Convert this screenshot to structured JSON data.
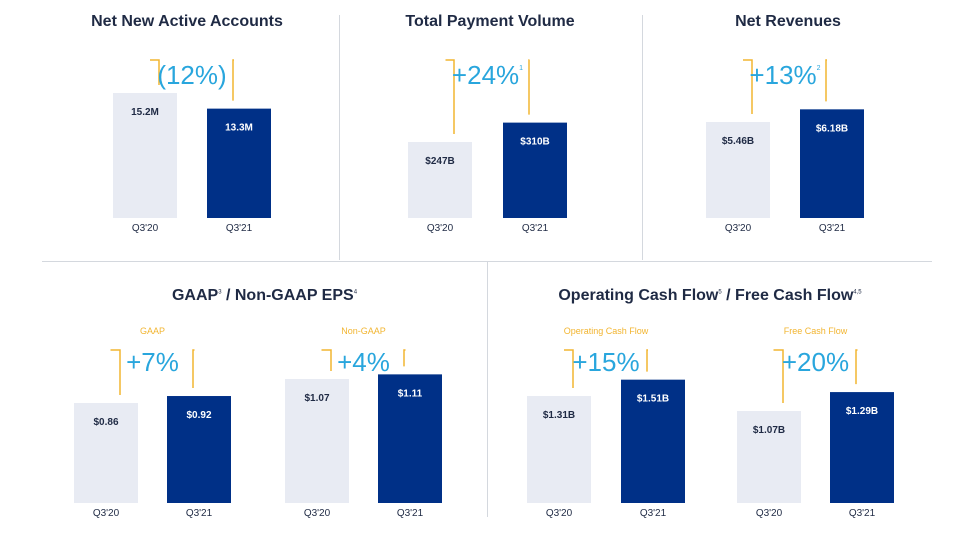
{
  "colors": {
    "prior_bar": "#e8ebf3",
    "current_bar": "#003087",
    "prior_text": "#1f2a44",
    "current_text": "#ffffff",
    "bracket": "#f2b531",
    "pct": "#29a6dd",
    "title": "#1f2a44"
  },
  "panels": [
    {
      "title": "Net New Active Accounts",
      "title_sup": ""
    },
    {
      "title": "Total Payment Volume",
      "title_sup": ""
    },
    {
      "title": "Net Revenues",
      "title_sup": ""
    },
    {
      "title_a": "GAAP",
      "sup_a": "3",
      "title_b": " / Non-GAAP EPS",
      "sup_b": "4"
    },
    {
      "title_a": "Operating Cash Flow",
      "sup_a": "5",
      "title_b": " / Free Cash Flow",
      "sup_b": "4,5"
    }
  ],
  "chart_data": [
    {
      "type": "bar",
      "categories": [
        "Q3'20",
        "Q3'21"
      ],
      "values": [
        15.2,
        13.3
      ],
      "labels": [
        "15.2M",
        "13.3M"
      ],
      "change": "(12%)",
      "change_sup": "",
      "subtitle": ""
    },
    {
      "type": "bar",
      "categories": [
        "Q3'20",
        "Q3'21"
      ],
      "values": [
        247,
        310
      ],
      "labels": [
        "$247B",
        "$310B"
      ],
      "change": "+24%",
      "change_sup": "1",
      "subtitle": ""
    },
    {
      "type": "bar",
      "categories": [
        "Q3'20",
        "Q3'21"
      ],
      "values": [
        5.46,
        6.18
      ],
      "labels": [
        "$5.46B",
        "$6.18B"
      ],
      "change": "+13%",
      "change_sup": "2",
      "subtitle": ""
    },
    {
      "type": "bar",
      "categories": [
        "Q3'20",
        "Q3'21"
      ],
      "values": [
        0.86,
        0.92
      ],
      "labels": [
        "$0.86",
        "$0.92"
      ],
      "change": "+7%",
      "change_sup": "",
      "subtitle": "GAAP"
    },
    {
      "type": "bar",
      "categories": [
        "Q3'20",
        "Q3'21"
      ],
      "values": [
        1.07,
        1.11
      ],
      "labels": [
        "$1.07",
        "$1.11"
      ],
      "change": "+4%",
      "change_sup": "",
      "subtitle": "Non-GAAP"
    },
    {
      "type": "bar",
      "categories": [
        "Q3'20",
        "Q3'21"
      ],
      "values": [
        1.31,
        1.51
      ],
      "labels": [
        "$1.31B",
        "$1.51B"
      ],
      "change": "+15%",
      "change_sup": "",
      "subtitle": "Operating Cash Flow"
    },
    {
      "type": "bar",
      "categories": [
        "Q3'20",
        "Q3'21"
      ],
      "values": [
        1.07,
        1.29
      ],
      "labels": [
        "$1.07B",
        "$1.29B"
      ],
      "change": "+20%",
      "change_sup": "",
      "subtitle": "Free Cash Flow"
    }
  ]
}
